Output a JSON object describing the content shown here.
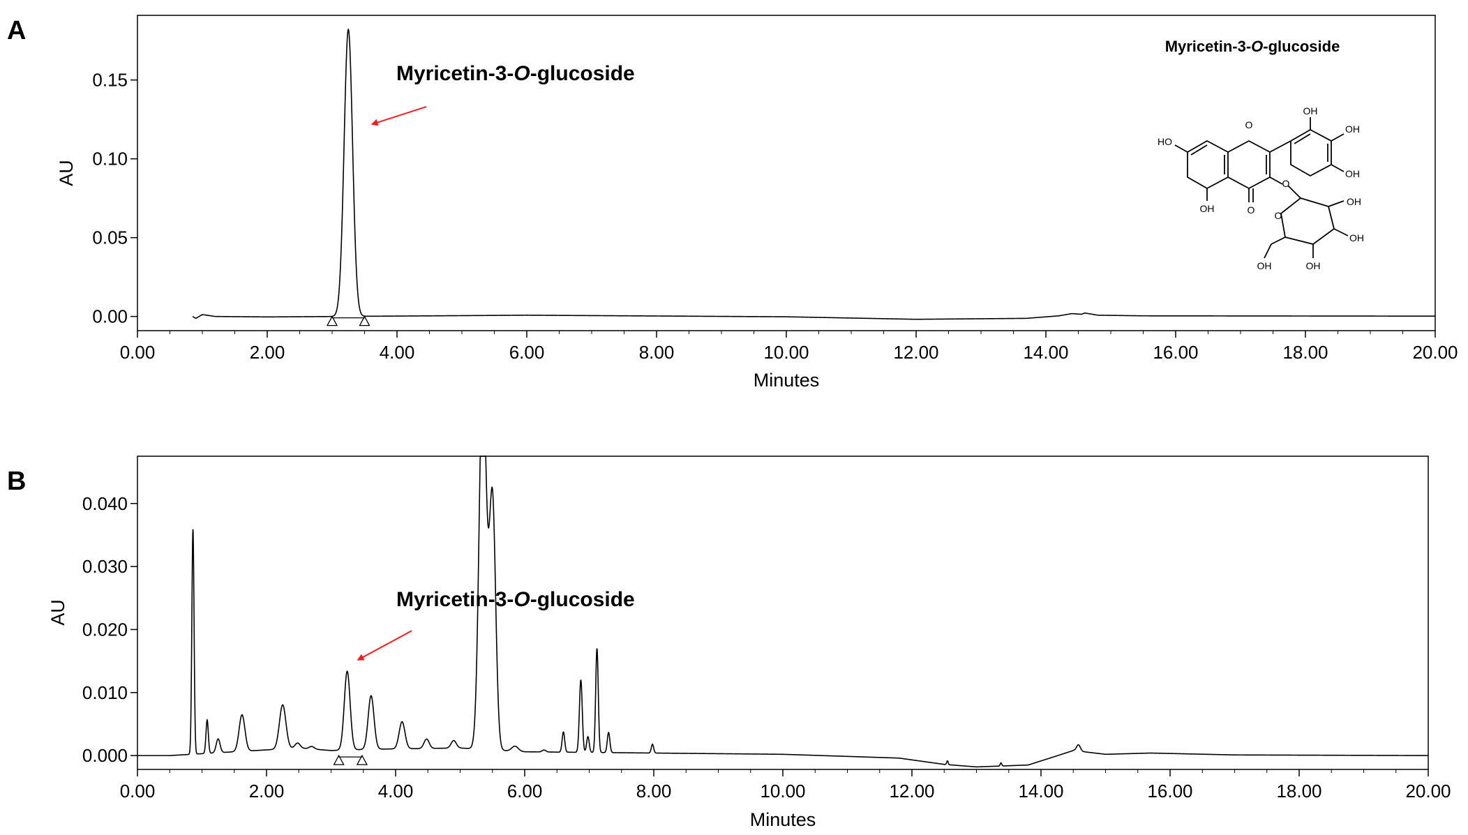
{
  "figure": {
    "panels": [
      {
        "panel_label": "A",
        "annotation": {
          "prefix": "Myricetin-3-",
          "italic": "O",
          "suffix": "-glucoside"
        },
        "structure_caption": {
          "prefix": "Myricetin-3-",
          "italic": "O",
          "suffix": "-glucoside"
        },
        "structure_labels": [
          "OH",
          "OH",
          "OH",
          "HO",
          "OH",
          "OH",
          "OH",
          "OH",
          "OH",
          "O",
          "O",
          "O",
          "O"
        ]
      },
      {
        "panel_label": "B",
        "annotation": {
          "prefix": "Myricetin-3-",
          "italic": "O",
          "suffix": "-glucoside"
        }
      }
    ]
  },
  "colors": {
    "trace": "#000000",
    "arrow": "#ff1a1a",
    "axes": "#000000"
  },
  "chart_data": [
    {
      "type": "line",
      "xlabel": "Minutes",
      "ylabel": "AU",
      "xlim": [
        0,
        20
      ],
      "ylim": [
        -0.009,
        0.191
      ],
      "xticks": [
        "0.00",
        "2.00",
        "4.00",
        "6.00",
        "8.00",
        "10.00",
        "12.00",
        "14.00",
        "16.00",
        "18.00",
        "20.00"
      ],
      "yticks": [
        "0.00",
        "0.05",
        "0.10",
        "0.15"
      ],
      "yticks_values": [
        0,
        0.05,
        0.1,
        0.15
      ],
      "grid": false,
      "baseline_points": [
        [
          0.85,
          0
        ],
        [
          0.9,
          -0.0012
        ],
        [
          1.0,
          0.0012
        ],
        [
          1.2,
          0
        ],
        [
          2.0,
          -0.0003
        ],
        [
          6.0,
          0.0008
        ],
        [
          10.0,
          -0.0002
        ],
        [
          12.0,
          -0.0018
        ],
        [
          13.7,
          -0.0012
        ],
        [
          14.2,
          0.0004
        ],
        [
          14.4,
          0.0018
        ],
        [
          14.55,
          0.0014
        ],
        [
          14.6,
          0.0022
        ],
        [
          14.8,
          0.0008
        ],
        [
          15.5,
          0.0004
        ],
        [
          20.0,
          0.0002
        ]
      ],
      "peaks": [
        {
          "rt": 3.25,
          "height": 0.182,
          "width": 0.065
        }
      ],
      "integration_markers": [
        3.0,
        3.5
      ],
      "annotation_arrow": {
        "from": [
          4.45,
          0.133
        ],
        "to": [
          3.62,
          0.122
        ]
      }
    },
    {
      "type": "line",
      "xlabel": "Minutes",
      "ylabel": "AU",
      "xlim": [
        0,
        20
      ],
      "ylim": [
        -0.0022,
        0.0475
      ],
      "xticks": [
        "0.00",
        "2.00",
        "4.00",
        "6.00",
        "8.00",
        "10.00",
        "12.00",
        "14.00",
        "16.00",
        "18.00",
        "20.00"
      ],
      "yticks": [
        "0.000",
        "0.010",
        "0.020",
        "0.030",
        "0.040"
      ],
      "yticks_values": [
        0,
        0.01,
        0.02,
        0.03,
        0.04
      ],
      "grid": false,
      "baseline_points": [
        [
          0.0,
          0
        ],
        [
          0.5,
          0
        ],
        [
          2.5,
          0.0012
        ],
        [
          3.0,
          0.0008
        ],
        [
          3.6,
          0.001
        ],
        [
          5.0,
          0.0012
        ],
        [
          6.0,
          0.0006
        ],
        [
          8.0,
          0.0004
        ],
        [
          10.0,
          0.0002
        ],
        [
          11.8,
          -0.0004
        ],
        [
          12.5,
          -0.0014
        ],
        [
          13.0,
          -0.0018
        ],
        [
          13.8,
          -0.0015
        ],
        [
          14.2,
          -0.0002
        ],
        [
          14.5,
          0.0008
        ],
        [
          15.0,
          0.0002
        ],
        [
          15.7,
          0.0004
        ],
        [
          17.0,
          0.0001
        ],
        [
          20.0,
          0
        ]
      ],
      "peaks": [
        {
          "rt": 0.86,
          "height": 0.0357,
          "width": 0.017
        },
        {
          "rt": 1.08,
          "height": 0.0053,
          "width": 0.018
        },
        {
          "rt": 1.25,
          "height": 0.0022,
          "width": 0.03
        },
        {
          "rt": 1.62,
          "height": 0.0058,
          "width": 0.045
        },
        {
          "rt": 2.25,
          "height": 0.007,
          "width": 0.05
        },
        {
          "rt": 2.48,
          "height": 0.0008,
          "width": 0.04
        },
        {
          "rt": 2.7,
          "height": 0.0004,
          "width": 0.04
        },
        {
          "rt": 3.25,
          "height": 0.0125,
          "width": 0.045
        },
        {
          "rt": 3.62,
          "height": 0.0085,
          "width": 0.045
        },
        {
          "rt": 4.1,
          "height": 0.0043,
          "width": 0.045
        },
        {
          "rt": 4.48,
          "height": 0.0015,
          "width": 0.04
        },
        {
          "rt": 4.9,
          "height": 0.0012,
          "width": 0.04
        },
        {
          "rt": 5.35,
          "height": 0.06,
          "width": 0.055
        },
        {
          "rt": 5.5,
          "height": 0.04,
          "width": 0.05
        },
        {
          "rt": 5.85,
          "height": 0.0008,
          "width": 0.05
        },
        {
          "rt": 6.3,
          "height": 0.0003,
          "width": 0.03
        },
        {
          "rt": 6.6,
          "height": 0.0032,
          "width": 0.02
        },
        {
          "rt": 6.87,
          "height": 0.0115,
          "width": 0.022
        },
        {
          "rt": 6.98,
          "height": 0.0025,
          "width": 0.02
        },
        {
          "rt": 7.12,
          "height": 0.0165,
          "width": 0.02
        },
        {
          "rt": 7.3,
          "height": 0.0032,
          "width": 0.02
        },
        {
          "rt": 7.98,
          "height": 0.0014,
          "width": 0.018
        },
        {
          "rt": 12.55,
          "height": 0.0006,
          "width": 0.012
        },
        {
          "rt": 13.38,
          "height": 0.0005,
          "width": 0.012
        },
        {
          "rt": 14.58,
          "height": 0.001,
          "width": 0.03
        }
      ],
      "integration_markers": [
        3.12,
        3.48
      ],
      "annotation_arrow": {
        "from": [
          4.25,
          0.0198
        ],
        "to": [
          3.42,
          0.0152
        ]
      }
    }
  ]
}
